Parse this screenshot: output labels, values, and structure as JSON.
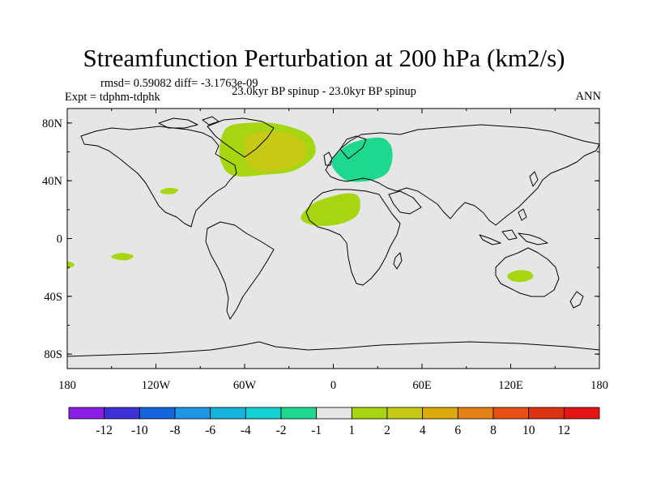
{
  "title": "Streamfunction Perturbation at 200 hPa (km2/s)",
  "stats_line": "rmsd= 0.59082 diff= -3.1763e-09",
  "experiment_line": "Expt = tdphm-tdphk",
  "subtitle": "23.0kyr BP spinup - 23.0kyr BP spinup",
  "season": "ANN",
  "colors": {
    "ocean_land_neutral": "#e6e6e6",
    "positive_1_2": "#a6d610",
    "positive_2_4": "#c8c816",
    "negative_1_2": "#1ed890",
    "coastline": "#000000"
  },
  "map": {
    "projection": "cylindrical-equidistant",
    "lon_range": [
      -180,
      180
    ],
    "lat_range": [
      -90,
      90
    ],
    "x_ticks": [
      {
        "value": -180,
        "label": "180"
      },
      {
        "value": -120,
        "label": "120W"
      },
      {
        "value": -60,
        "label": "60W"
      },
      {
        "value": 0,
        "label": "0"
      },
      {
        "value": 60,
        "label": "60E"
      },
      {
        "value": 120,
        "label": "120E"
      },
      {
        "value": 180,
        "label": "180"
      }
    ],
    "y_ticks": [
      {
        "value": 80,
        "label": "80N"
      },
      {
        "value": 40,
        "label": "40N"
      },
      {
        "value": 0,
        "label": "0"
      },
      {
        "value": -40,
        "label": "40S"
      },
      {
        "value": -80,
        "label": "80S"
      }
    ],
    "anomaly_regions": [
      {
        "name": "north-atlantic-outer",
        "level": "1-2",
        "color": "#a6d610",
        "outline_lonlat": [
          [
            -75,
            72
          ],
          [
            -70,
            78
          ],
          [
            -58,
            80
          ],
          [
            -42,
            80
          ],
          [
            -25,
            76
          ],
          [
            -15,
            70
          ],
          [
            -12,
            60
          ],
          [
            -18,
            52
          ],
          [
            -30,
            46
          ],
          [
            -48,
            44
          ],
          [
            -62,
            43
          ],
          [
            -72,
            46
          ],
          [
            -77,
            58
          ]
        ]
      },
      {
        "name": "north-atlantic-core",
        "level": "2-4",
        "color": "#c8c816",
        "outline_lonlat": [
          [
            -60,
            68
          ],
          [
            -52,
            73
          ],
          [
            -38,
            74
          ],
          [
            -24,
            70
          ],
          [
            -18,
            62
          ],
          [
            -22,
            53
          ],
          [
            -34,
            48
          ],
          [
            -48,
            47
          ],
          [
            -58,
            52
          ]
        ]
      },
      {
        "name": "europe-negative",
        "level": "-2 to -1",
        "color": "#1ed890",
        "outline_lonlat": [
          [
            2,
            58
          ],
          [
            12,
            66
          ],
          [
            30,
            70
          ],
          [
            38,
            66
          ],
          [
            40,
            56
          ],
          [
            36,
            45
          ],
          [
            24,
            40
          ],
          [
            10,
            40
          ],
          [
            2,
            46
          ],
          [
            -1,
            52
          ]
        ]
      },
      {
        "name": "north-africa",
        "level": "1-2",
        "color": "#a6d610",
        "outline_lonlat": [
          [
            -22,
            14
          ],
          [
            -14,
            24
          ],
          [
            2,
            30
          ],
          [
            14,
            31
          ],
          [
            18,
            26
          ],
          [
            16,
            16
          ],
          [
            4,
            10
          ],
          [
            -12,
            9
          ]
        ]
      },
      {
        "name": "gulf-of-mexico",
        "level": "1-2",
        "color": "#a6d610",
        "outline_lonlat": [
          [
            -117,
            33
          ],
          [
            -112,
            35
          ],
          [
            -105,
            34
          ],
          [
            -108,
            31
          ],
          [
            -115,
            31
          ]
        ]
      },
      {
        "name": "central-pacific",
        "level": "1-2",
        "color": "#a6d610",
        "outline_lonlat": [
          [
            -150,
            -12
          ],
          [
            -143,
            -10
          ],
          [
            -135,
            -12
          ],
          [
            -140,
            -15
          ],
          [
            -148,
            -14
          ]
        ]
      },
      {
        "name": "south-pacific-edge",
        "level": "1-2",
        "color": "#a6d610",
        "outline_lonlat": [
          [
            -180,
            -16
          ],
          [
            -175,
            -18
          ],
          [
            -180,
            -21
          ]
        ]
      },
      {
        "name": "australia",
        "level": "1-2",
        "color": "#a6d610",
        "outline_lonlat": [
          [
            118,
            -25
          ],
          [
            125,
            -22
          ],
          [
            133,
            -23
          ],
          [
            135,
            -27
          ],
          [
            128,
            -30
          ],
          [
            120,
            -29
          ]
        ]
      }
    ]
  },
  "colorbar": {
    "boxes": [
      "#8c1ee6",
      "#3c32d8",
      "#1464dc",
      "#1e96e6",
      "#14b4dc",
      "#14d2d2",
      "#1ed890",
      "#e6e6e6",
      "#a6d610",
      "#c8c816",
      "#dcaa0a",
      "#e68214",
      "#e65014",
      "#dc3214",
      "#e61414"
    ],
    "labels": [
      "-12",
      "-10",
      "-8",
      "-6",
      "-4",
      "-2",
      "-1",
      "1",
      "2",
      "4",
      "6",
      "8",
      "10",
      "12"
    ]
  }
}
